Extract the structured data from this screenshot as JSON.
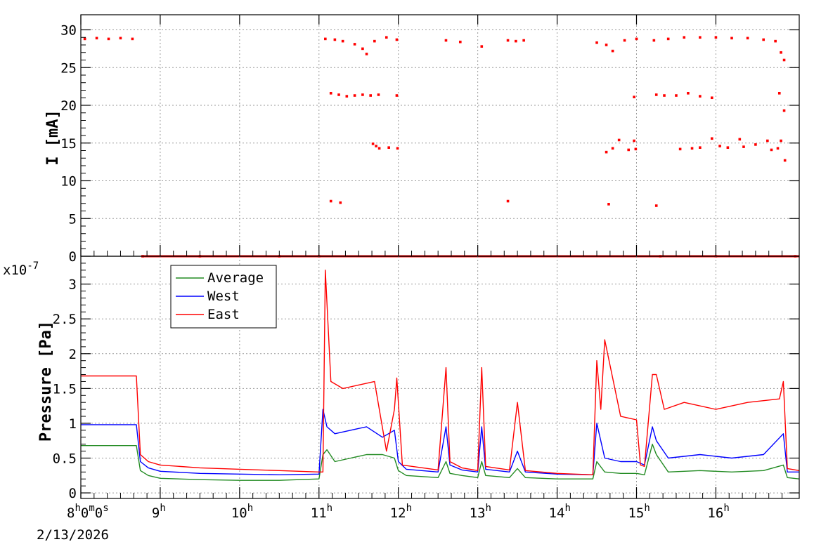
{
  "chart_data": [
    {
      "type": "scatter",
      "ylabel": "I [mA]",
      "ylim": [
        0,
        32
      ],
      "yticks": [
        "0",
        "5",
        "10",
        "15",
        "20",
        "25",
        "30"
      ],
      "grid": true,
      "x_unit": "hours since 8:00 on 2/13/2026",
      "xlim": [
        8.0,
        17.05
      ],
      "series": [
        {
          "color": "#ff0000",
          "points": [
            [
              8.05,
              28.8
            ],
            [
              8.2,
              28.9
            ],
            [
              8.35,
              28.8
            ],
            [
              8.5,
              28.9
            ],
            [
              8.65,
              28.8
            ],
            [
              8.78,
              0
            ],
            [
              9.5,
              0
            ],
            [
              10.5,
              0
            ],
            [
              11.0,
              0
            ],
            [
              11.08,
              28.8
            ],
            [
              11.2,
              28.7
            ],
            [
              11.3,
              28.5
            ],
            [
              11.45,
              28.1
            ],
            [
              11.55,
              27.5
            ],
            [
              11.6,
              26.8
            ],
            [
              11.7,
              28.5
            ],
            [
              11.85,
              29.0
            ],
            [
              11.98,
              28.7
            ],
            [
              11.15,
              21.6
            ],
            [
              11.25,
              21.4
            ],
            [
              11.35,
              21.2
            ],
            [
              11.45,
              21.3
            ],
            [
              11.55,
              21.4
            ],
            [
              11.65,
              21.3
            ],
            [
              11.75,
              21.4
            ],
            [
              11.98,
              21.3
            ],
            [
              11.68,
              14.9
            ],
            [
              11.72,
              14.6
            ],
            [
              11.76,
              14.3
            ],
            [
              11.88,
              14.4
            ],
            [
              11.99,
              14.3
            ],
            [
              11.15,
              7.3
            ],
            [
              11.27,
              7.1
            ],
            [
              12.6,
              28.6
            ],
            [
              12.78,
              28.4
            ],
            [
              13.05,
              27.8
            ],
            [
              13.38,
              28.6
            ],
            [
              13.48,
              28.5
            ],
            [
              13.58,
              28.6
            ],
            [
              13.38,
              7.3
            ],
            [
              14.5,
              28.3
            ],
            [
              14.62,
              28.0
            ],
            [
              14.7,
              27.2
            ],
            [
              14.85,
              28.6
            ],
            [
              15.0,
              28.8
            ],
            [
              14.62,
              13.8
            ],
            [
              14.7,
              14.3
            ],
            [
              14.78,
              15.4
            ],
            [
              14.9,
              14.1
            ],
            [
              14.97,
              15.3
            ],
            [
              14.99,
              14.2
            ],
            [
              14.97,
              21.1
            ],
            [
              14.65,
              6.9
            ],
            [
              15.22,
              28.6
            ],
            [
              15.4,
              28.8
            ],
            [
              15.6,
              29.0
            ],
            [
              15.8,
              29.0
            ],
            [
              16.0,
              29.0
            ],
            [
              16.2,
              28.9
            ],
            [
              16.4,
              28.9
            ],
            [
              16.6,
              28.7
            ],
            [
              16.75,
              28.5
            ],
            [
              16.82,
              27.0
            ],
            [
              16.86,
              26.0
            ],
            [
              15.25,
              21.4
            ],
            [
              15.35,
              21.3
            ],
            [
              15.5,
              21.3
            ],
            [
              15.65,
              21.6
            ],
            [
              15.8,
              21.2
            ],
            [
              15.95,
              21.0
            ],
            [
              16.8,
              21.6
            ],
            [
              16.86,
              19.3
            ],
            [
              15.55,
              14.2
            ],
            [
              15.7,
              14.3
            ],
            [
              15.8,
              14.4
            ],
            [
              15.95,
              15.6
            ],
            [
              16.05,
              14.6
            ],
            [
              16.15,
              14.4
            ],
            [
              16.3,
              15.5
            ],
            [
              16.35,
              14.5
            ],
            [
              16.5,
              14.8
            ],
            [
              16.65,
              15.3
            ],
            [
              16.7,
              14.1
            ],
            [
              16.78,
              14.3
            ],
            [
              16.82,
              15.3
            ],
            [
              16.87,
              12.7
            ],
            [
              15.25,
              6.7
            ],
            [
              15.3,
              0
            ],
            [
              16.0,
              0
            ],
            [
              17.0,
              0
            ]
          ]
        }
      ]
    },
    {
      "type": "line",
      "ylabel": "Pressure [Pa]",
      "ymultiplier": "x10",
      "ymultiplier_exp": "-7",
      "ylim": [
        -0.08,
        3.4
      ],
      "yticks": [
        "0",
        "0.5",
        "1",
        "1.5",
        "2",
        "2.5",
        "3"
      ],
      "grid": true,
      "xlim": [
        8.0,
        17.05
      ],
      "xtick_first": "8",
      "xtick_first_suffix": "0",
      "xtick_date": "2/13/2026",
      "xticks": [
        {
          "value": 9,
          "label": "9"
        },
        {
          "value": 10,
          "label": "10"
        },
        {
          "value": 11,
          "label": "11"
        },
        {
          "value": 12,
          "label": "12"
        },
        {
          "value": 13,
          "label": "13"
        },
        {
          "value": 14,
          "label": "14"
        },
        {
          "value": 15,
          "label": "15"
        },
        {
          "value": 16,
          "label": "16"
        }
      ],
      "legend_position": "top-left",
      "series": [
        {
          "name": "Average",
          "color": "#228b22",
          "x": [
            8.0,
            8.7,
            8.75,
            8.85,
            9.0,
            9.5,
            10.0,
            10.5,
            11.0,
            11.05,
            11.1,
            11.2,
            11.4,
            11.6,
            11.8,
            11.95,
            12.0,
            12.1,
            12.5,
            12.6,
            12.65,
            12.8,
            13.0,
            13.05,
            13.1,
            13.4,
            13.5,
            13.6,
            14.0,
            14.45,
            14.5,
            14.6,
            14.8,
            15.0,
            15.1,
            15.2,
            15.25,
            15.4,
            15.8,
            16.2,
            16.6,
            16.85,
            16.9,
            17.05
          ],
          "y": [
            0.68,
            0.68,
            0.32,
            0.25,
            0.21,
            0.19,
            0.18,
            0.18,
            0.2,
            0.55,
            0.62,
            0.45,
            0.5,
            0.55,
            0.55,
            0.5,
            0.32,
            0.25,
            0.22,
            0.45,
            0.28,
            0.25,
            0.22,
            0.45,
            0.25,
            0.22,
            0.35,
            0.22,
            0.2,
            0.2,
            0.45,
            0.3,
            0.28,
            0.28,
            0.26,
            0.7,
            0.55,
            0.3,
            0.32,
            0.3,
            0.32,
            0.4,
            0.22,
            0.2
          ]
        },
        {
          "name": "West",
          "color": "#0000ff",
          "x": [
            8.0,
            8.7,
            8.75,
            8.85,
            9.0,
            9.5,
            10.0,
            10.5,
            11.0,
            11.05,
            11.1,
            11.2,
            11.4,
            11.6,
            11.8,
            11.95,
            12.0,
            12.1,
            12.5,
            12.6,
            12.65,
            12.8,
            13.0,
            13.05,
            13.1,
            13.4,
            13.5,
            13.6,
            14.0,
            14.45,
            14.5,
            14.6,
            14.8,
            15.0,
            15.1,
            15.2,
            15.25,
            15.4,
            15.8,
            16.2,
            16.6,
            16.85,
            16.9,
            17.05
          ],
          "y": [
            0.98,
            0.98,
            0.45,
            0.36,
            0.31,
            0.28,
            0.27,
            0.26,
            0.27,
            1.2,
            0.95,
            0.85,
            0.9,
            0.95,
            0.8,
            0.9,
            0.45,
            0.34,
            0.3,
            0.95,
            0.4,
            0.33,
            0.3,
            0.95,
            0.34,
            0.3,
            0.6,
            0.3,
            0.27,
            0.26,
            1.0,
            0.5,
            0.45,
            0.45,
            0.4,
            0.95,
            0.75,
            0.5,
            0.55,
            0.5,
            0.55,
            0.85,
            0.3,
            0.3
          ]
        },
        {
          "name": "East",
          "color": "#ff0000",
          "x": [
            8.0,
            8.7,
            8.75,
            8.85,
            9.0,
            9.5,
            10.0,
            10.5,
            11.0,
            11.05,
            11.08,
            11.15,
            11.3,
            11.5,
            11.7,
            11.85,
            11.95,
            11.98,
            12.05,
            12.5,
            12.6,
            12.65,
            12.8,
            13.0,
            13.05,
            13.1,
            13.4,
            13.5,
            13.6,
            14.0,
            14.45,
            14.5,
            14.55,
            14.6,
            14.8,
            15.0,
            15.05,
            15.1,
            15.2,
            15.25,
            15.35,
            15.6,
            16.0,
            16.4,
            16.8,
            16.85,
            16.9,
            17.05
          ],
          "y": [
            1.68,
            1.68,
            0.55,
            0.45,
            0.4,
            0.36,
            0.34,
            0.32,
            0.3,
            0.3,
            3.2,
            1.6,
            1.5,
            1.55,
            1.6,
            0.6,
            1.2,
            1.65,
            0.4,
            0.33,
            1.8,
            0.45,
            0.36,
            0.32,
            1.8,
            0.38,
            0.33,
            1.3,
            0.32,
            0.28,
            0.26,
            1.9,
            1.2,
            2.2,
            1.1,
            1.05,
            0.4,
            0.38,
            1.7,
            1.7,
            1.2,
            1.3,
            1.2,
            1.3,
            1.35,
            1.6,
            0.35,
            0.32
          ]
        }
      ]
    }
  ]
}
